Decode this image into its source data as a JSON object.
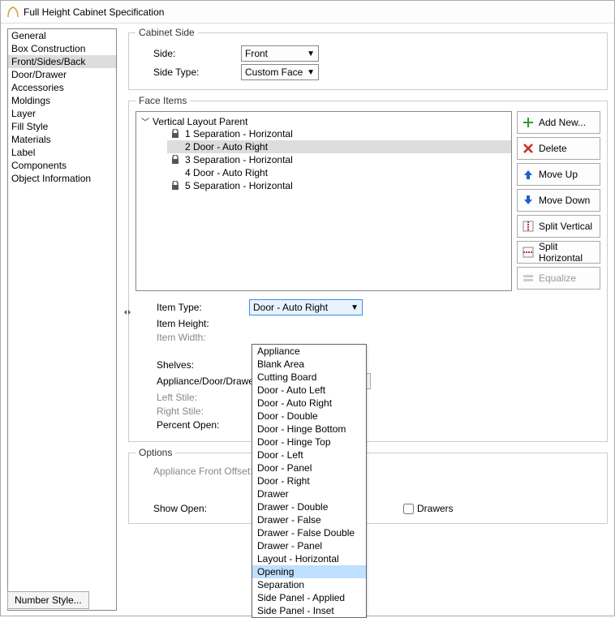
{
  "window": {
    "title": "Full Height Cabinet Specification"
  },
  "sidebar": {
    "items": [
      {
        "label": "General"
      },
      {
        "label": "Box Construction"
      },
      {
        "label": "Front/Sides/Back",
        "selected": true
      },
      {
        "label": "Door/Drawer"
      },
      {
        "label": "Accessories"
      },
      {
        "label": "Moldings"
      },
      {
        "label": "Layer"
      },
      {
        "label": "Fill Style"
      },
      {
        "label": "Materials"
      },
      {
        "label": "Label"
      },
      {
        "label": "Components"
      },
      {
        "label": "Object Information"
      }
    ]
  },
  "cabinet_side": {
    "legend": "Cabinet Side",
    "side_label": "Side:",
    "side_value": "Front",
    "side_type_label": "Side Type:",
    "side_type_value": "Custom Face"
  },
  "face_items": {
    "legend": "Face Items",
    "parent_label": "Vertical Layout Parent",
    "items": [
      {
        "label": "1 Separation - Horizontal",
        "locked": true
      },
      {
        "label": "2 Door - Auto Right",
        "selected": true
      },
      {
        "label": "3 Separation - Horizontal",
        "locked": true
      },
      {
        "label": "4 Door - Auto Right"
      },
      {
        "label": "5 Separation - Horizontal",
        "locked": true
      }
    ],
    "buttons": {
      "add_new": "Add New...",
      "delete": "Delete",
      "move_up": "Move Up",
      "move_down": "Move Down",
      "split_vertical": "Split Vertical",
      "split_horizontal": "Split Horizontal",
      "equalize": "Equalize"
    }
  },
  "item_form": {
    "item_type_label": "Item Type:",
    "item_type_value": "Door - Auto Right",
    "item_height_label": "Item Height:",
    "item_width_label": "Item Width:",
    "shelves_label": "Shelves:",
    "appliance_label": "Appliance/Door/Drawer:",
    "left_stile_label": "Left Stile:",
    "right_stile_label": "Right Stile:",
    "percent_open_label": "Percent Open:"
  },
  "options": {
    "legend": "Options",
    "appliance_offset_label": "Appliance Front Offset:",
    "show_open_label": "Show Open:",
    "drawers_label": "Drawers"
  },
  "dropdown": {
    "options": [
      "Appliance",
      "Blank Area",
      "Cutting Board",
      "Door - Auto Left",
      "Door - Auto Right",
      "Door - Double",
      "Door - Hinge Bottom",
      "Door - Hinge Top",
      "Door - Left",
      "Door - Panel",
      "Door - Right",
      "Drawer",
      "Drawer - Double",
      "Drawer - False",
      "Drawer - False Double",
      "Drawer - Panel",
      "Layout - Horizontal",
      "Opening",
      "Separation",
      "Side Panel - Applied",
      "Side Panel - Inset"
    ],
    "hover_index": 17
  },
  "footer": {
    "number_style": "Number Style..."
  },
  "colors": {
    "selection_bg": "#dddddd",
    "hover_bg": "#bfe0ff",
    "add_icon": "#2e9c2e",
    "delete_icon": "#cf2a1f",
    "move_icon": "#1f5fcf",
    "split_icon": "#cf2a1f"
  }
}
